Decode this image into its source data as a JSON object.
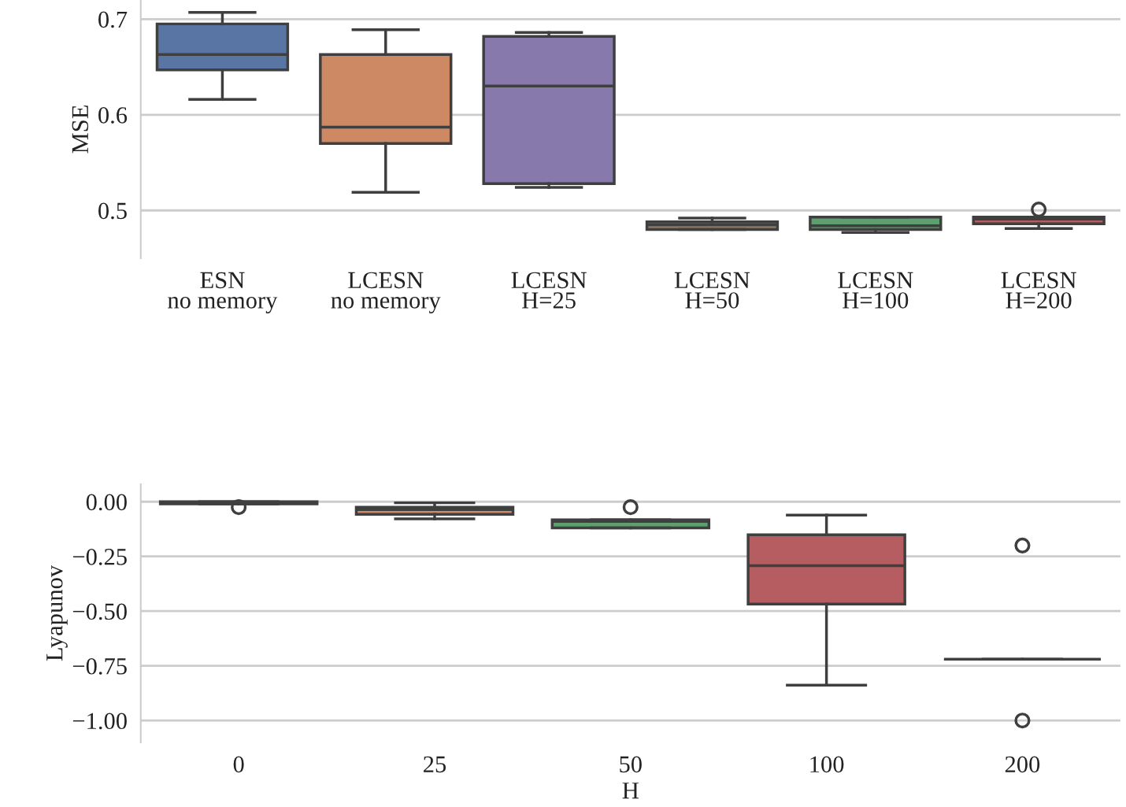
{
  "chart_data": [
    {
      "type": "box",
      "ylabel": "MSE",
      "categories": [
        "ESN\nno memory",
        "LCESN\nno memory",
        "LCESN\nH=25",
        "LCESN\nH=50",
        "LCESN\nH=100",
        "LCESN\nH=200"
      ],
      "colors": [
        "#5875a4",
        "#cc8963",
        "#8779ab",
        "#8d7866",
        "#5f9e6e",
        "#b55d60"
      ],
      "boxes": [
        {
          "low": 0.616,
          "q1": 0.647,
          "median": 0.663,
          "q3": 0.695,
          "high": 0.707
        },
        {
          "low": 0.519,
          "q1": 0.57,
          "median": 0.587,
          "q3": 0.663,
          "high": 0.689
        },
        {
          "low": 0.524,
          "q1": 0.528,
          "median": 0.63,
          "q3": 0.682,
          "high": 0.686
        },
        {
          "low": 0.48,
          "q1": 0.48,
          "median": 0.485,
          "q3": 0.488,
          "high": 0.492
        },
        {
          "low": 0.477,
          "q1": 0.48,
          "median": 0.484,
          "q3": 0.493,
          "high": 0.493
        },
        {
          "low": 0.481,
          "q1": 0.486,
          "median": 0.491,
          "q3": 0.493,
          "high": 0.493,
          "outliers": [
            0.501
          ]
        }
      ],
      "ylim": [
        0.45,
        0.72
      ],
      "yticks": [
        0.5,
        0.6,
        0.7
      ],
      "grid": "y"
    },
    {
      "type": "box",
      "ylabel": "Lyapunov",
      "xlabel": "H",
      "categories": [
        "0",
        "25",
        "50",
        "100",
        "200"
      ],
      "colors": [
        "#5875a4",
        "#cc8963",
        "#5f9e6e",
        "#b55d60",
        "#3f3f3f"
      ],
      "boxes": [
        {
          "low": -0.01,
          "q1": -0.01,
          "median": -0.005,
          "q3": 0.0,
          "high": 0.0,
          "outliers": [
            -0.025
          ]
        },
        {
          "low": -0.078,
          "q1": -0.058,
          "median": -0.036,
          "q3": -0.025,
          "high": -0.005
        },
        {
          "low": -0.12,
          "q1": -0.12,
          "median": -0.09,
          "q3": -0.083,
          "high": -0.083,
          "outliers": [
            -0.025
          ]
        },
        {
          "low": -0.838,
          "q1": -0.468,
          "median": -0.292,
          "q3": -0.151,
          "high": -0.061
        },
        {
          "low": -0.72,
          "q1": -0.72,
          "median": -0.72,
          "q3": -0.72,
          "high": -0.72,
          "outliers": [
            -0.2,
            -1.0
          ]
        }
      ],
      "ylim": [
        -1.1,
        0.08
      ],
      "yticks": [
        {
          "value": 0,
          "label": "0.00"
        },
        {
          "value": -0.25,
          "label": "−0.25"
        },
        {
          "value": -0.5,
          "label": "−0.50"
        },
        {
          "value": -0.75,
          "label": "−0.75"
        },
        {
          "value": -1.0,
          "label": "−1.00"
        }
      ],
      "grid": "y"
    }
  ]
}
